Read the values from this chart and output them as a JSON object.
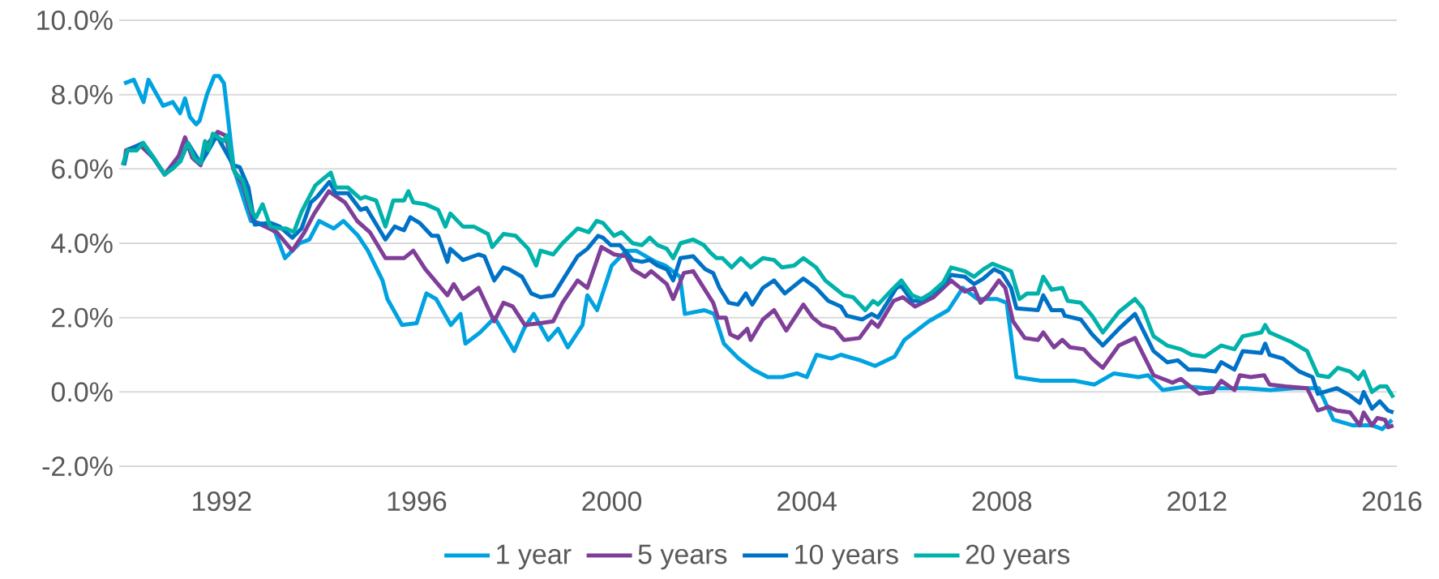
{
  "chart_data": {
    "type": "line",
    "xlim": [
      1989.9,
      2016.1
    ],
    "xticks": [
      1992,
      1996,
      2000,
      2004,
      2008,
      2012,
      2016
    ],
    "ylim": [
      -2,
      10
    ],
    "yticks": [
      {
        "value": -2,
        "label": "-2.0%"
      },
      {
        "value": 0,
        "label": "0.0%"
      },
      {
        "value": 2,
        "label": "2.0%"
      },
      {
        "value": 4,
        "label": "4.0%"
      },
      {
        "value": 6,
        "label": "6.0%"
      },
      {
        "value": 8,
        "label": "8.0%"
      },
      {
        "value": 10,
        "label": "10.0%"
      }
    ],
    "grid": "y",
    "legend": "bottom",
    "marker": "none",
    "line_style": "solid",
    "series": [
      {
        "name": "1 year",
        "color": "#00a3e0",
        "x": [
          1990.0,
          1990.2,
          1990.4,
          1990.5,
          1990.8,
          1991.0,
          1991.15,
          1991.25,
          1991.35,
          1991.48,
          1991.55,
          1991.7,
          1991.85,
          1991.95,
          1992.05,
          1992.25,
          1992.6,
          1992.9,
          1993.1,
          1993.3,
          1993.6,
          1993.8,
          1994.0,
          1994.3,
          1994.5,
          1994.8,
          1995.0,
          1995.3,
          1995.4,
          1995.7,
          1996.0,
          1996.2,
          1996.4,
          1996.7,
          1996.9,
          1997.0,
          1997.3,
          1997.6,
          1998.0,
          1998.2,
          1998.4,
          1998.7,
          1998.9,
          1999.1,
          1999.4,
          1999.5,
          1999.7,
          2000.0,
          2000.3,
          2000.5,
          2000.9,
          2001.1,
          2001.4,
          2001.5,
          2001.9,
          2002.1,
          2002.3,
          2002.6,
          2002.9,
          2003.2,
          2003.5,
          2003.8,
          2004.0,
          2004.2,
          2004.5,
          2004.7,
          2005.1,
          2005.4,
          2005.8,
          2006.0,
          2006.5,
          2006.9,
          2007.2,
          2007.5,
          2007.9,
          2008.1,
          2008.3,
          2008.8,
          2009.5,
          2009.9,
          2010.3,
          2010.8,
          2011.0,
          2011.3,
          2011.8,
          2012.2,
          2012.6,
          2013.0,
          2013.5,
          2014.0,
          2014.5,
          2014.8,
          2015.2,
          2015.6,
          2015.8,
          2016.0
        ],
        "values": [
          8.3,
          8.4,
          7.8,
          8.4,
          7.7,
          7.8,
          7.5,
          7.9,
          7.4,
          7.2,
          7.3,
          8.0,
          8.5,
          8.5,
          8.3,
          6.0,
          4.6,
          4.5,
          4.3,
          3.6,
          4.0,
          4.1,
          4.6,
          4.4,
          4.6,
          4.2,
          3.8,
          3.0,
          2.5,
          1.8,
          1.85,
          2.65,
          2.5,
          1.8,
          2.1,
          1.3,
          1.6,
          2.0,
          1.1,
          1.7,
          2.1,
          1.4,
          1.7,
          1.2,
          1.8,
          2.6,
          2.2,
          3.4,
          3.8,
          3.8,
          3.5,
          3.4,
          3.1,
          2.1,
          2.2,
          2.1,
          1.3,
          0.9,
          0.6,
          0.4,
          0.4,
          0.5,
          0.4,
          1.0,
          0.9,
          1.0,
          0.85,
          0.7,
          0.95,
          1.4,
          1.9,
          2.2,
          2.8,
          2.5,
          2.5,
          2.4,
          0.4,
          0.3,
          0.3,
          0.2,
          0.5,
          0.4,
          0.45,
          0.05,
          0.15,
          0.1,
          0.1,
          0.1,
          0.05,
          0.1,
          0.1,
          -0.75,
          -0.9,
          -0.9,
          -1.0,
          -0.75
        ]
      },
      {
        "name": "5 years",
        "color": "#7f3f98",
        "x": [
          1990.0,
          1990.04,
          1990.32,
          1990.6,
          1990.83,
          1991.12,
          1991.25,
          1991.4,
          1991.57,
          1991.66,
          1991.92,
          1992.08,
          1992.24,
          1992.43,
          1992.65,
          1993.13,
          1993.45,
          1993.7,
          1993.9,
          1994.2,
          1994.53,
          1994.78,
          1995.04,
          1995.36,
          1995.74,
          1995.93,
          1996.18,
          1996.63,
          1996.76,
          1996.95,
          1997.27,
          1997.59,
          1997.78,
          1997.97,
          1998.22,
          1998.54,
          1998.8,
          1998.99,
          1999.3,
          1999.5,
          1999.79,
          2000.05,
          2000.3,
          2000.43,
          2000.68,
          2000.81,
          2001.13,
          2001.26,
          2001.48,
          2001.67,
          2002.08,
          2002.18,
          2002.34,
          2002.43,
          2002.59,
          2002.78,
          2002.85,
          2003.1,
          2003.33,
          2003.58,
          2003.93,
          2004.12,
          2004.31,
          2004.57,
          2004.76,
          2005.08,
          2005.33,
          2005.46,
          2005.78,
          2005.97,
          2006.22,
          2006.6,
          2006.96,
          2007.24,
          2007.43,
          2007.56,
          2007.72,
          2007.94,
          2008.07,
          2008.23,
          2008.47,
          2008.74,
          2008.85,
          2009.07,
          2009.24,
          2009.4,
          2009.68,
          2009.85,
          2010.07,
          2010.4,
          2010.73,
          2011.11,
          2011.5,
          2011.67,
          2012.05,
          2012.33,
          2012.5,
          2012.77,
          2012.88,
          2013.1,
          2013.38,
          2013.49,
          2013.82,
          2014.26,
          2014.48,
          2014.7,
          2014.87,
          2015.14,
          2015.34,
          2015.42,
          2015.59,
          2015.7,
          2015.86,
          2015.92,
          2016.03
        ],
        "values": [
          6.1,
          6.5,
          6.65,
          6.3,
          5.85,
          6.35,
          6.85,
          6.3,
          6.1,
          6.6,
          7.0,
          6.9,
          6.0,
          5.6,
          4.6,
          4.3,
          3.8,
          4.3,
          4.8,
          5.4,
          5.1,
          4.6,
          4.3,
          3.6,
          3.6,
          3.8,
          3.3,
          2.6,
          2.9,
          2.5,
          2.8,
          1.9,
          2.4,
          2.3,
          1.8,
          1.85,
          1.9,
          2.4,
          3.0,
          2.8,
          3.9,
          3.7,
          3.65,
          3.3,
          3.1,
          3.25,
          2.9,
          2.5,
          3.2,
          3.25,
          2.4,
          2.0,
          2.0,
          1.55,
          1.45,
          1.7,
          1.4,
          1.95,
          2.2,
          1.65,
          2.35,
          2.0,
          1.8,
          1.7,
          1.4,
          1.45,
          1.9,
          1.75,
          2.45,
          2.55,
          2.3,
          2.55,
          3.0,
          2.7,
          2.8,
          2.4,
          2.6,
          3.0,
          2.8,
          1.9,
          1.45,
          1.4,
          1.6,
          1.2,
          1.4,
          1.2,
          1.15,
          0.9,
          0.65,
          1.25,
          1.45,
          0.45,
          0.25,
          0.35,
          -0.05,
          0.0,
          0.3,
          0.05,
          0.45,
          0.4,
          0.45,
          0.2,
          0.15,
          0.1,
          -0.5,
          -0.4,
          -0.5,
          -0.55,
          -0.9,
          -0.55,
          -0.9,
          -0.7,
          -0.75,
          -0.95,
          -0.9
        ]
      },
      {
        "name": "10 years",
        "color": "#0072c6",
        "x": [
          1990.0,
          1990.07,
          1990.39,
          1990.83,
          1991.15,
          1991.31,
          1991.57,
          1991.73,
          1991.9,
          1992.24,
          1992.37,
          1992.55,
          1992.68,
          1993.0,
          1993.19,
          1993.45,
          1993.64,
          1993.83,
          1993.96,
          1994.21,
          1994.34,
          1994.59,
          1994.85,
          1994.97,
          1995.36,
          1995.55,
          1995.74,
          1995.87,
          1996.06,
          1996.31,
          1996.44,
          1996.63,
          1996.69,
          1996.95,
          1997.27,
          1997.39,
          1997.59,
          1997.78,
          1997.9,
          1998.16,
          1998.35,
          1998.54,
          1998.8,
          1998.99,
          1999.3,
          1999.5,
          1999.72,
          1999.82,
          1999.98,
          2000.17,
          2000.43,
          2000.62,
          2000.78,
          2000.94,
          2001.13,
          2001.26,
          2001.41,
          2001.67,
          2001.92,
          2002.08,
          2002.21,
          2002.4,
          2002.59,
          2002.75,
          2002.88,
          2003.1,
          2003.33,
          2003.55,
          2003.93,
          2004.19,
          2004.44,
          2004.7,
          2004.82,
          2005.14,
          2005.33,
          2005.46,
          2005.84,
          2005.94,
          2006.16,
          2006.35,
          2006.73,
          2006.96,
          2007.24,
          2007.43,
          2007.62,
          2007.84,
          2008.0,
          2008.19,
          2008.3,
          2008.74,
          2008.85,
          2009.02,
          2009.24,
          2009.29,
          2009.62,
          2009.85,
          2010.07,
          2010.4,
          2010.73,
          2011.11,
          2011.39,
          2011.61,
          2011.83,
          2012.05,
          2012.38,
          2012.5,
          2012.77,
          2012.94,
          2013.32,
          2013.4,
          2013.49,
          2013.76,
          2014.1,
          2014.37,
          2014.48,
          2014.87,
          2015.14,
          2015.34,
          2015.42,
          2015.59,
          2015.75,
          2015.92,
          2016.03
        ],
        "values": [
          6.1,
          6.5,
          6.7,
          5.85,
          6.2,
          6.7,
          6.15,
          6.5,
          6.9,
          6.1,
          6.05,
          5.5,
          4.5,
          4.55,
          4.45,
          4.15,
          4.4,
          5.1,
          5.25,
          5.65,
          5.35,
          5.35,
          4.9,
          4.95,
          4.1,
          4.45,
          4.35,
          4.7,
          4.55,
          4.2,
          4.2,
          3.5,
          3.85,
          3.55,
          3.7,
          3.65,
          3.0,
          3.35,
          3.3,
          3.1,
          2.65,
          2.55,
          2.6,
          3.0,
          3.65,
          3.85,
          4.2,
          4.15,
          3.95,
          3.95,
          3.55,
          3.5,
          3.55,
          3.4,
          3.3,
          3.0,
          3.6,
          3.65,
          3.3,
          3.2,
          2.8,
          2.4,
          2.35,
          2.65,
          2.35,
          2.8,
          3.0,
          2.65,
          3.05,
          2.8,
          2.45,
          2.3,
          2.05,
          1.95,
          2.1,
          2.0,
          2.8,
          2.85,
          2.45,
          2.45,
          2.8,
          3.15,
          3.1,
          2.9,
          3.05,
          3.3,
          3.2,
          2.8,
          2.25,
          2.2,
          2.6,
          2.2,
          2.2,
          2.05,
          1.95,
          1.55,
          1.25,
          1.7,
          2.1,
          1.1,
          0.8,
          0.85,
          0.6,
          0.6,
          0.55,
          0.8,
          0.6,
          1.1,
          1.05,
          1.3,
          1.0,
          0.9,
          0.55,
          0.4,
          -0.05,
          0.1,
          -0.1,
          -0.3,
          0.0,
          -0.45,
          -0.25,
          -0.5,
          -0.55
        ]
      },
      {
        "name": "20 years",
        "color": "#00b2a9",
        "x": [
          1989.97,
          1990.07,
          1990.26,
          1990.39,
          1990.61,
          1990.83,
          1990.99,
          1991.15,
          1991.31,
          1991.44,
          1991.57,
          1991.66,
          1991.73,
          1991.82,
          1992.04,
          1992.11,
          1992.27,
          1992.43,
          1992.62,
          1992.71,
          1992.84,
          1993.0,
          1993.19,
          1993.32,
          1993.48,
          1993.64,
          1993.8,
          1993.92,
          1994.05,
          1994.24,
          1994.34,
          1994.59,
          1994.85,
          1994.94,
          1995.17,
          1995.36,
          1995.52,
          1995.74,
          1995.83,
          1995.93,
          1996.18,
          1996.44,
          1996.59,
          1996.69,
          1996.95,
          1997.17,
          1997.46,
          1997.55,
          1997.78,
          1998.03,
          1998.29,
          1998.45,
          1998.54,
          1998.8,
          1998.99,
          1999.3,
          1999.53,
          1999.69,
          1999.82,
          2000.05,
          2000.2,
          2000.43,
          2000.62,
          2000.78,
          2000.94,
          2001.13,
          2001.26,
          2001.41,
          2001.67,
          2001.89,
          2002.02,
          2002.15,
          2002.27,
          2002.46,
          2002.65,
          2002.85,
          2003.1,
          2003.33,
          2003.49,
          2003.74,
          2003.93,
          2004.19,
          2004.38,
          2004.57,
          2004.76,
          2004.95,
          2005.2,
          2005.36,
          2005.46,
          2005.71,
          2005.94,
          2006.16,
          2006.35,
          2006.54,
          2006.8,
          2006.96,
          2007.24,
          2007.43,
          2007.62,
          2007.81,
          2008.0,
          2008.19,
          2008.36,
          2008.52,
          2008.74,
          2008.85,
          2009.02,
          2009.24,
          2009.35,
          2009.62,
          2009.85,
          2010.07,
          2010.4,
          2010.73,
          2010.89,
          2011.11,
          2011.39,
          2011.67,
          2011.89,
          2012.16,
          2012.5,
          2012.77,
          2012.94,
          2013.32,
          2013.4,
          2013.49,
          2013.93,
          2014.26,
          2014.48,
          2014.7,
          2014.89,
          2015.14,
          2015.31,
          2015.42,
          2015.59,
          2015.75,
          2015.89,
          2016.03
        ],
        "values": [
          6.1,
          6.5,
          6.5,
          6.7,
          6.3,
          5.85,
          6.0,
          6.2,
          6.7,
          6.3,
          6.15,
          6.75,
          6.5,
          6.95,
          6.75,
          6.9,
          5.9,
          5.7,
          4.85,
          4.7,
          5.05,
          4.45,
          4.4,
          4.4,
          4.3,
          4.85,
          5.25,
          5.55,
          5.7,
          5.9,
          5.5,
          5.5,
          5.2,
          5.25,
          5.15,
          4.45,
          5.15,
          5.15,
          5.4,
          5.1,
          5.05,
          4.9,
          4.45,
          4.8,
          4.45,
          4.45,
          4.25,
          3.9,
          4.25,
          4.2,
          3.85,
          3.4,
          3.8,
          3.7,
          4.0,
          4.4,
          4.3,
          4.6,
          4.55,
          4.2,
          4.3,
          4.0,
          3.95,
          4.15,
          3.95,
          3.85,
          3.6,
          4.0,
          4.1,
          3.95,
          3.75,
          3.6,
          3.6,
          3.35,
          3.6,
          3.35,
          3.6,
          3.55,
          3.35,
          3.4,
          3.6,
          3.35,
          3.0,
          2.8,
          2.6,
          2.55,
          2.2,
          2.45,
          2.35,
          2.7,
          3.0,
          2.6,
          2.5,
          2.65,
          2.95,
          3.35,
          3.25,
          3.1,
          3.3,
          3.45,
          3.35,
          3.25,
          2.5,
          2.65,
          2.65,
          3.1,
          2.75,
          2.8,
          2.45,
          2.4,
          2.05,
          1.6,
          2.15,
          2.5,
          2.25,
          1.5,
          1.25,
          1.15,
          1.0,
          0.95,
          1.25,
          1.15,
          1.5,
          1.6,
          1.8,
          1.6,
          1.35,
          1.1,
          0.45,
          0.4,
          0.65,
          0.55,
          0.35,
          0.55,
          0.0,
          0.15,
          0.15,
          -0.15
        ]
      }
    ]
  }
}
